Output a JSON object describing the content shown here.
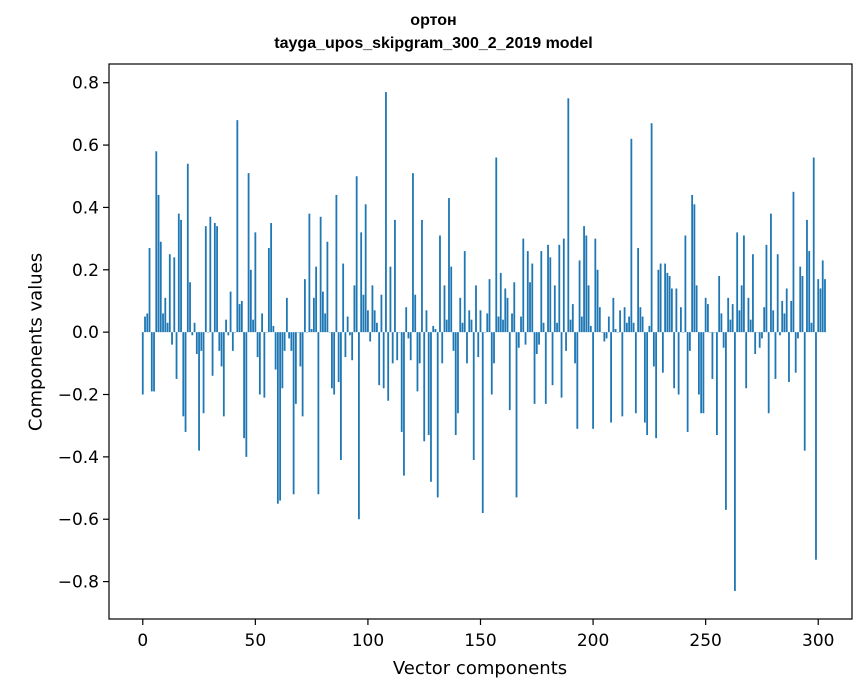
{
  "chart_data": {
    "type": "bar",
    "title_lines": [
      "ортон",
      "tayga_upos_skipgram_300_2_2019 model"
    ],
    "xlabel": "Vector components",
    "ylabel": "Components values",
    "xlim": [
      -15,
      315
    ],
    "ylim": [
      -0.92,
      0.86
    ],
    "xticks": [
      0,
      50,
      100,
      150,
      200,
      250,
      300
    ],
    "xtick_labels": [
      "0",
      "50",
      "100",
      "150",
      "200",
      "250",
      "300"
    ],
    "yticks": [
      -0.8,
      -0.6,
      -0.4,
      -0.2,
      0.0,
      0.2,
      0.4,
      0.6,
      0.8
    ],
    "ytick_labels": [
      "−0.8",
      "−0.6",
      "−0.4",
      "−0.2",
      "0.0",
      "0.2",
      "0.4",
      "0.6",
      "0.8"
    ],
    "bar_color": "#1f77b4",
    "grid": false,
    "values": [
      -0.2,
      0.05,
      0.06,
      0.27,
      -0.19,
      -0.19,
      0.58,
      0.44,
      0.29,
      0.06,
      0.11,
      0.03,
      0.25,
      -0.04,
      0.24,
      -0.15,
      0.38,
      0.36,
      -0.27,
      -0.32,
      0.54,
      0.16,
      -0.01,
      0.03,
      -0.07,
      -0.38,
      -0.06,
      -0.26,
      0.34,
      0.0,
      0.37,
      -0.14,
      0.35,
      0.34,
      -0.06,
      -0.11,
      -0.27,
      0.04,
      -0.01,
      0.13,
      -0.06,
      0.0,
      0.68,
      0.09,
      0.1,
      -0.34,
      -0.4,
      0.51,
      0.2,
      0.04,
      0.32,
      -0.08,
      -0.2,
      0.06,
      -0.21,
      0.0,
      0.27,
      0.35,
      0.02,
      -0.12,
      -0.55,
      -0.54,
      -0.18,
      -0.06,
      0.11,
      -0.02,
      -0.06,
      -0.52,
      -0.23,
      0.0,
      -0.11,
      -0.27,
      0.17,
      0.0,
      0.38,
      0.01,
      0.11,
      0.21,
      -0.52,
      0.37,
      0.13,
      0.06,
      0.29,
      0.0,
      -0.18,
      -0.2,
      0.44,
      -0.16,
      -0.41,
      0.22,
      -0.08,
      0.05,
      -0.01,
      -0.09,
      0.15,
      0.5,
      -0.6,
      0.32,
      0.12,
      0.41,
      0.07,
      -0.03,
      0.15,
      0.07,
      0.03,
      -0.17,
      0.12,
      -0.18,
      0.77,
      -0.22,
      0.21,
      -0.1,
      0.36,
      -0.09,
      0.0,
      -0.32,
      -0.46,
      0.08,
      -0.02,
      -0.09,
      0.51,
      0.12,
      -0.19,
      -0.1,
      0.36,
      -0.35,
      0.07,
      -0.33,
      -0.48,
      0.02,
      0.01,
      -0.53,
      0.31,
      -0.1,
      0.15,
      0.04,
      0.43,
      0.21,
      -0.06,
      -0.33,
      -0.26,
      0.11,
      0.03,
      0.26,
      -0.1,
      0.07,
      0.04,
      -0.41,
      0.15,
      -0.08,
      0.07,
      -0.58,
      0.0,
      0.06,
      0.17,
      -0.2,
      -0.1,
      0.56,
      0.05,
      0.19,
      0.04,
      0.14,
      0.11,
      -0.25,
      0.06,
      0.16,
      -0.53,
      -0.05,
      0.05,
      0.3,
      -0.04,
      0.26,
      0.16,
      0.22,
      -0.23,
      -0.07,
      -0.04,
      0.26,
      0.03,
      -0.23,
      0.28,
      0.24,
      -0.17,
      0.15,
      0.03,
      0.28,
      -0.21,
      0.3,
      -0.06,
      0.75,
      0.04,
      0.09,
      -0.1,
      -0.31,
      0.23,
      0.05,
      0.34,
      0.31,
      0.15,
      0.02,
      -0.31,
      0.3,
      0.2,
      0.08,
      0.0,
      -0.03,
      -0.02,
      0.05,
      -0.29,
      0.11,
      0.01,
      0.0,
      0.07,
      -0.27,
      0.08,
      0.03,
      0.05,
      0.62,
      0.03,
      -0.26,
      0.27,
      0.08,
      0.05,
      -0.29,
      -0.33,
      0.02,
      0.67,
      -0.11,
      -0.34,
      0.2,
      0.22,
      -0.13,
      0.22,
      0.19,
      0.18,
      0.14,
      -0.18,
      0.14,
      -0.2,
      0.08,
      0.0,
      0.31,
      -0.32,
      -0.06,
      0.44,
      0.41,
      0.15,
      -0.2,
      -0.26,
      -0.26,
      0.11,
      0.09,
      0.0,
      -0.15,
      0.0,
      -0.33,
      0.18,
      0.06,
      -0.05,
      -0.57,
      0.11,
      0.04,
      0.09,
      -0.83,
      0.32,
      0.07,
      0.15,
      0.31,
      -0.18,
      0.11,
      0.04,
      0.25,
      -0.07,
      0.0,
      -0.05,
      -0.02,
      0.08,
      0.28,
      -0.26,
      0.38,
      0.07,
      -0.15,
      0.25,
      -0.01,
      0.1,
      0.06,
      0.14,
      -0.16,
      0.1,
      0.45,
      -0.13,
      -0.02,
      0.21,
      0.18,
      -0.38,
      0.36,
      0.26,
      0.03,
      0.56,
      -0.73,
      0.17,
      0.14,
      0.23,
      0.17
    ]
  }
}
